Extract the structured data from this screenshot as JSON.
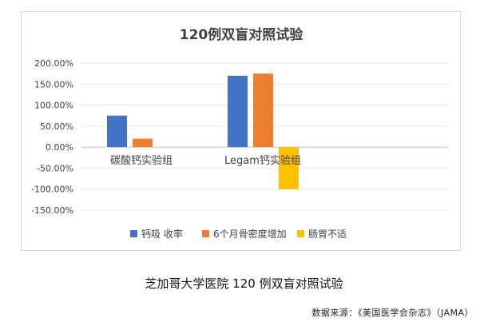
{
  "chart_data": {
    "type": "bar",
    "title": "120例双盲对照试验",
    "categories": [
      "碳酸钙实验组",
      "Legam钙实验组"
    ],
    "series": [
      {
        "name": "钙吸 收率",
        "color": "#4472C4",
        "values": [
          75,
          170
        ]
      },
      {
        "name": "6个月骨密度增加",
        "color": "#ED7D31",
        "values": [
          20,
          175
        ]
      },
      {
        "name": "肠胃不适",
        "color": "#FFC000",
        "values": [
          0,
          -100
        ]
      }
    ],
    "yticks": [
      "200.00%",
      "150.00%",
      "100.00%",
      "50.00%",
      "0.00%",
      "-50.00%",
      "-100.00%",
      "-150.00%"
    ],
    "ylim": [
      -150,
      200
    ],
    "ytick_step": 50,
    "grid": true,
    "legend_position": "bottom"
  },
  "caption": "芝加哥大学医院 120 例双盲对照试验",
  "source": "数据来源：《美国医学会杂志》（JAMA）"
}
